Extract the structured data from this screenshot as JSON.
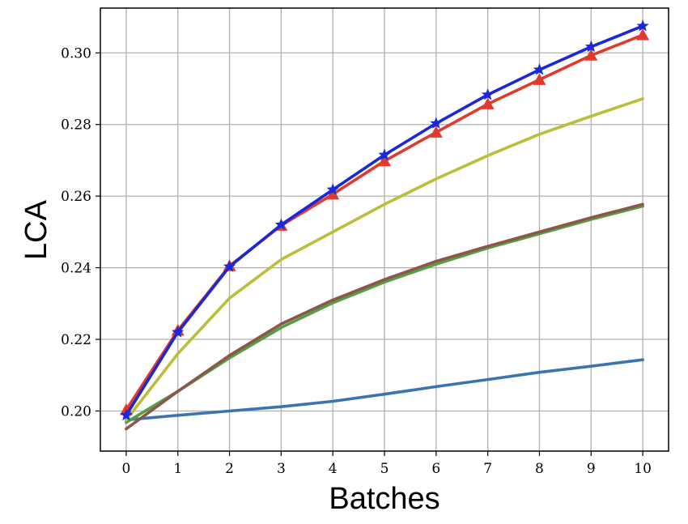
{
  "chart_data": {
    "type": "line",
    "xlabel": "Batches",
    "ylabel": "LCA",
    "x": [
      0,
      1,
      2,
      3,
      4,
      5,
      6,
      7,
      8,
      9,
      10
    ],
    "xticks": [
      "0",
      "1",
      "2",
      "3",
      "4",
      "5",
      "6",
      "7",
      "8",
      "9",
      "10"
    ],
    "yticks": [
      "0.20",
      "0.22",
      "0.24",
      "0.26",
      "0.28",
      "0.30"
    ],
    "xlim": [
      -0.5,
      10.5
    ],
    "ylim": [
      0.1888,
      0.3125
    ],
    "grid": true,
    "series": [
      {
        "color": "#3b75af",
        "marker": "none",
        "values": [
          0.1975,
          0.1988,
          0.2,
          0.2012,
          0.2027,
          0.2047,
          0.2068,
          0.2088,
          0.2108,
          0.2125,
          0.2143
        ]
      },
      {
        "color": "#52a043",
        "marker": "none",
        "values": [
          0.1968,
          0.2055,
          0.2148,
          0.2233,
          0.2302,
          0.236,
          0.241,
          0.2455,
          0.2495,
          0.2535,
          0.2572
        ]
      },
      {
        "color": "#8c564b",
        "marker": "none",
        "values": [
          0.195,
          0.2055,
          0.2155,
          0.2243,
          0.231,
          0.2367,
          0.2418,
          0.246,
          0.25,
          0.254,
          0.2577
        ]
      },
      {
        "color": "#bcbd3a",
        "marker": "none",
        "values": [
          0.1975,
          0.216,
          0.2315,
          0.2423,
          0.25,
          0.2577,
          0.2648,
          0.2713,
          0.2773,
          0.2823,
          0.2872
        ]
      },
      {
        "color": "#e03a2c",
        "marker": "triangle",
        "values": [
          0.2003,
          0.2225,
          0.2405,
          0.2518,
          0.2605,
          0.2698,
          0.2778,
          0.2857,
          0.2925,
          0.2993,
          0.305
        ]
      },
      {
        "color": "#1a28d8",
        "marker": "star",
        "values": [
          0.1988,
          0.222,
          0.2403,
          0.252,
          0.2618,
          0.2715,
          0.2803,
          0.2883,
          0.2953,
          0.3017,
          0.3075
        ]
      }
    ]
  }
}
